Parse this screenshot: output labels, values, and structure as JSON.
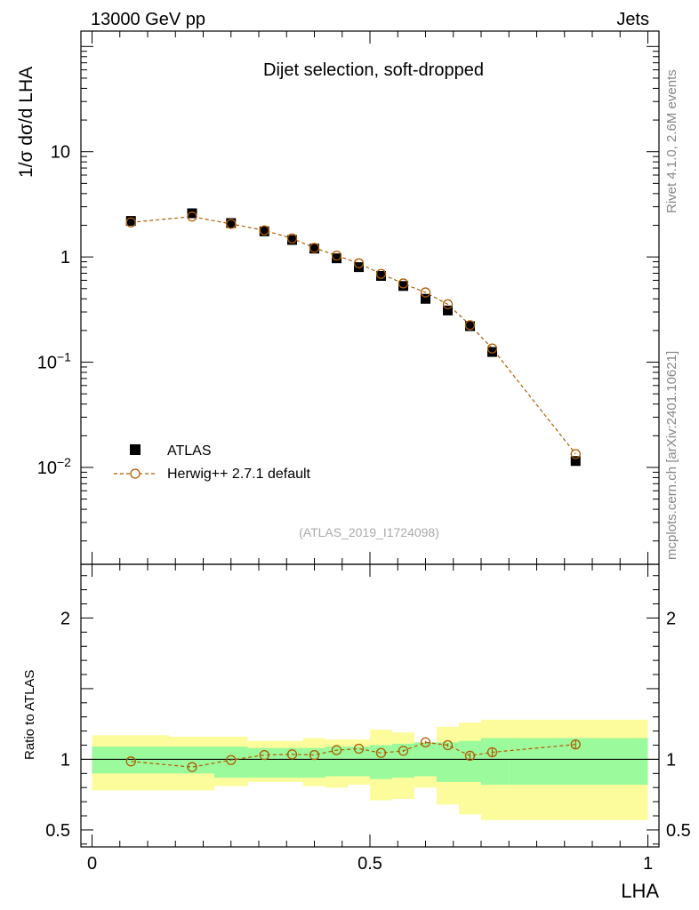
{
  "header": {
    "left": "13000 GeV pp",
    "right": "Jets"
  },
  "side_labels": {
    "rivet": "Rivet 4.1.0,  2.6M events",
    "mcplots": "mcplots.cern.ch [arXiv:2401.10621]"
  },
  "chart_data": [
    {
      "type": "scatter",
      "title": "Dijet selection, soft-dropped",
      "analysis_id": "(ATLAS_2019_I1724098)",
      "ylabel": "1/σ dσ/d LHA",
      "yscale": "log",
      "ylim": [
        0.0012,
        140
      ],
      "xlim": [
        -0.02,
        1.02
      ],
      "y_ticks": [
        {
          "value": 10,
          "label": "10"
        },
        {
          "value": 1,
          "label": "1"
        },
        {
          "value": 0.1,
          "label": "10",
          "exp": "−1"
        },
        {
          "value": 0.01,
          "label": "10",
          "exp": "−2"
        }
      ],
      "legend": {
        "position": "bottom-left",
        "entries": [
          "ATLAS",
          "Herwig++ 2.7.1 default"
        ]
      },
      "series": [
        {
          "name": "ATLAS",
          "x": [
            0.07,
            0.18,
            0.25,
            0.31,
            0.36,
            0.4,
            0.44,
            0.48,
            0.52,
            0.56,
            0.6,
            0.64,
            0.68,
            0.72,
            0.87
          ],
          "y": [
            2.2,
            2.6,
            2.1,
            1.75,
            1.45,
            1.2,
            0.97,
            0.8,
            0.66,
            0.53,
            0.4,
            0.31,
            0.22,
            0.125,
            0.0115
          ]
        },
        {
          "name": "Herwig++ 2.7.1 default",
          "x": [
            0.07,
            0.18,
            0.25,
            0.31,
            0.36,
            0.4,
            0.44,
            0.48,
            0.52,
            0.56,
            0.6,
            0.64,
            0.68,
            0.72,
            0.87
          ],
          "y": [
            2.13,
            2.42,
            2.06,
            1.79,
            1.5,
            1.22,
            1.03,
            0.87,
            0.69,
            0.56,
            0.46,
            0.355,
            0.225,
            0.135,
            0.0134
          ]
        }
      ]
    },
    {
      "type": "scatter",
      "ylabel": "Ratio to ATLAS",
      "xlabel": "LHA",
      "ylim": [
        0.38,
        2.38
      ],
      "xlim": [
        -0.02,
        1.02
      ],
      "y_ticks": [
        {
          "value": 2,
          "label": "2"
        },
        {
          "value": 1,
          "label": "1"
        },
        {
          "value": 0.5,
          "label": "0.5"
        }
      ],
      "x_ticks": [
        {
          "value": 0,
          "label": "0"
        },
        {
          "value": 0.5,
          "label": "0.5"
        },
        {
          "value": 1,
          "label": "1"
        }
      ],
      "reference_line": 1,
      "bands": {
        "edges": [
          0.0,
          0.14,
          0.22,
          0.28,
          0.34,
          0.38,
          0.42,
          0.46,
          0.5,
          0.54,
          0.58,
          0.62,
          0.66,
          0.7,
          0.75,
          1.0
        ],
        "stat_lo": [
          0.9,
          0.9,
          0.87,
          0.87,
          0.87,
          0.87,
          0.88,
          0.88,
          0.86,
          0.87,
          0.88,
          0.84,
          0.84,
          0.82,
          0.82
        ],
        "stat_hi": [
          1.09,
          1.09,
          1.09,
          1.08,
          1.08,
          1.08,
          1.09,
          1.09,
          1.1,
          1.11,
          1.12,
          1.12,
          1.13,
          1.15,
          1.15
        ],
        "syst_lo": [
          0.78,
          0.78,
          0.81,
          0.84,
          0.84,
          0.81,
          0.8,
          0.82,
          0.71,
          0.72,
          0.8,
          0.68,
          0.61,
          0.57,
          0.57
        ],
        "syst_hi": [
          1.17,
          1.16,
          1.16,
          1.13,
          1.13,
          1.15,
          1.14,
          1.14,
          1.21,
          1.19,
          1.12,
          1.23,
          1.26,
          1.28,
          1.28
        ]
      },
      "series": [
        {
          "name": "Herwig++ 2.7.1 default / ATLAS",
          "x": [
            0.07,
            0.18,
            0.25,
            0.31,
            0.36,
            0.4,
            0.44,
            0.48,
            0.52,
            0.56,
            0.6,
            0.64,
            0.68,
            0.72,
            0.87
          ],
          "y": [
            0.985,
            0.945,
            0.995,
            1.03,
            1.035,
            1.03,
            1.065,
            1.075,
            1.045,
            1.06,
            1.12,
            1.1,
            1.025,
            1.05,
            1.105
          ],
          "err": [
            0.005,
            0.005,
            0.005,
            0.005,
            0.005,
            0.005,
            0.005,
            0.005,
            0.006,
            0.008,
            0.01,
            0.012,
            0.02,
            0.03,
            0.035
          ]
        }
      ]
    }
  ],
  "colors": {
    "mc": "#b05c00",
    "stat_band": "#9bfa9b",
    "syst_band": "#fcfc9c",
    "data": "#000000"
  }
}
